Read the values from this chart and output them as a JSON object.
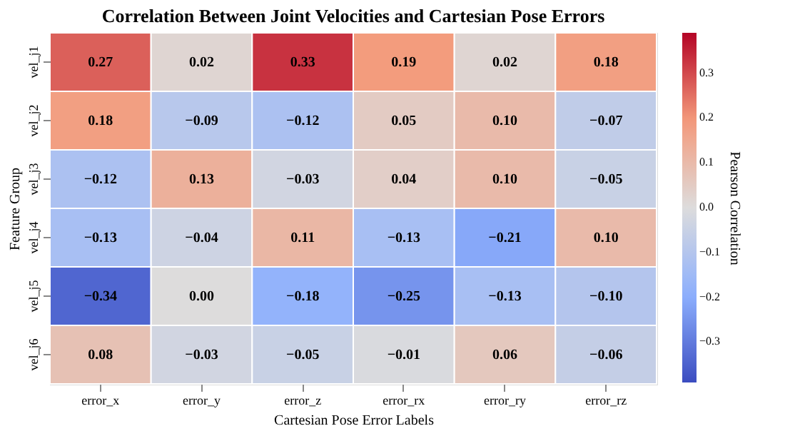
{
  "chart_data": {
    "type": "heatmap",
    "title": "Correlation Between Joint Velocities and Cartesian Pose Errors",
    "xlabel": "Cartesian Pose Error Labels",
    "ylabel": "Feature Group",
    "clabel": "Pearson Correlation",
    "categories": [
      "error_x",
      "error_y",
      "error_z",
      "error_rx",
      "error_ry",
      "error_rz"
    ],
    "y_categories": [
      "vel_j1",
      "vel_j2",
      "vel_j3",
      "vel_j4",
      "vel_j5",
      "vel_j6"
    ],
    "cells": [
      [
        0.27,
        0.02,
        0.33,
        0.19,
        0.02,
        0.18
      ],
      [
        0.18,
        -0.09,
        -0.12,
        0.05,
        0.1,
        -0.07
      ],
      [
        -0.12,
        0.13,
        -0.03,
        0.04,
        0.1,
        -0.05
      ],
      [
        -0.13,
        -0.04,
        0.11,
        -0.13,
        -0.21,
        0.1
      ],
      [
        -0.34,
        0.0,
        -0.18,
        -0.25,
        -0.13,
        -0.1
      ],
      [
        0.08,
        -0.03,
        -0.05,
        -0.01,
        0.06,
        -0.06
      ]
    ],
    "clim": [
      -0.39,
      0.39
    ],
    "cticks": [
      -0.3,
      -0.2,
      -0.1,
      {
        "value": 0,
        "label": "0.0"
      },
      0.1,
      0.2,
      0.3
    ],
    "cell_labels": [
      [
        "0.27",
        "0.02",
        "0.33",
        "0.19",
        "0.02",
        "0.18"
      ],
      [
        "0.18",
        "−0.09",
        "−0.12",
        "0.05",
        "0.10",
        "−0.07"
      ],
      [
        "−0.12",
        "0.13",
        "−0.03",
        "0.04",
        "0.10",
        "−0.05"
      ],
      [
        "−0.13",
        "−0.04",
        "0.11",
        "−0.13",
        "−0.21",
        "0.10"
      ],
      [
        "−0.34",
        "0.00",
        "−0.18",
        "−0.25",
        "−0.13",
        "−0.10"
      ],
      [
        "0.08",
        "−0.03",
        "−0.05",
        "−0.01",
        "0.06",
        "−0.06"
      ]
    ],
    "data_labels": true
  }
}
